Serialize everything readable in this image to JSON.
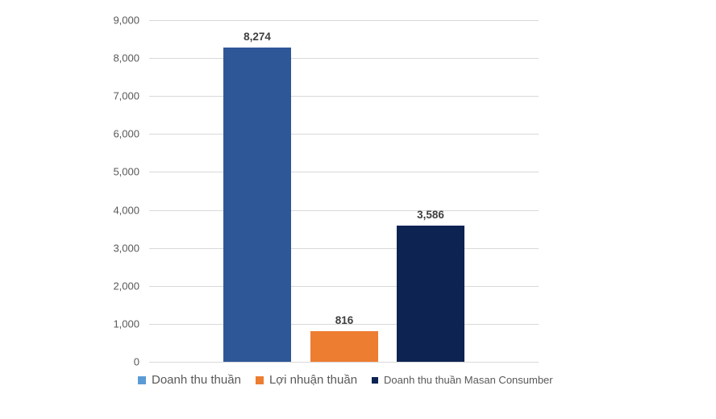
{
  "chart_data": {
    "type": "bar",
    "title": "",
    "xlabel": "",
    "ylabel": "",
    "categories": [
      ""
    ],
    "series": [
      {
        "name": "Doanh thu thuần",
        "value": 8274,
        "value_label": "8,274",
        "bar_color": "#2E5797",
        "legend_color": "#5B9BD5"
      },
      {
        "name": "Lợi nhuận thuần",
        "value": 816,
        "value_label": "816",
        "bar_color": "#ED7D31",
        "legend_color": "#ED7D31"
      },
      {
        "name": "Doanh thu thuần Masan Consumber",
        "value": 3586,
        "value_label": "3,586",
        "bar_color": "#0D2352",
        "legend_color": "#0D2352"
      }
    ],
    "ylim": [
      0,
      9000
    ],
    "ytick_step": 1000,
    "yticks": [
      "0",
      "1,000",
      "2,000",
      "3,000",
      "4,000",
      "5,000",
      "6,000",
      "7,000",
      "8,000",
      "9,000"
    ],
    "grid": true,
    "legend_position": "bottom"
  },
  "colors": {
    "background": "#FFFFFF",
    "gridline": "#D9D9D9",
    "axis_text": "#595959",
    "data_label": "#3F3F3F",
    "legend_text": "#595959"
  }
}
